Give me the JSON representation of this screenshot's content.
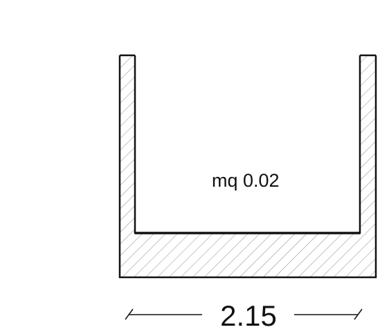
{
  "room": {
    "area_label": "mq 0.02"
  },
  "dimension": {
    "width_label": "2.15"
  },
  "colors": {
    "wall_stroke": "#111111",
    "hatch": "#8a8a8a",
    "background": "#ffffff"
  }
}
